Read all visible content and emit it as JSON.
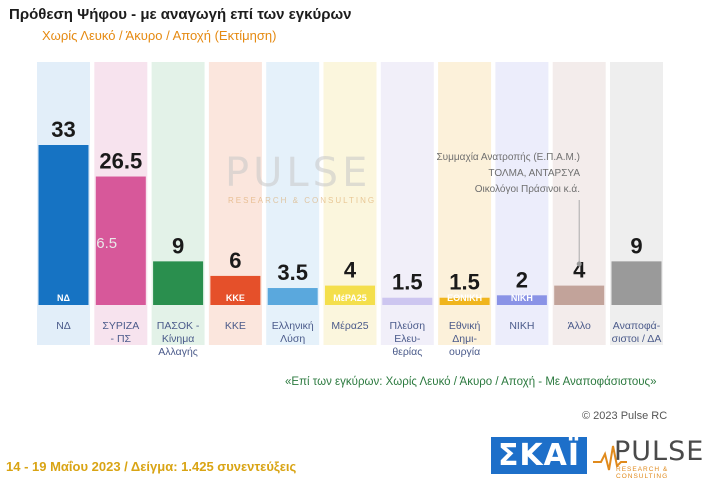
{
  "title": "Πρόθεση Ψήφου - με αναγωγή επί των εγκύρων",
  "subtitle": "Χωρίς Λευκό / Άκυρο / Αποχή  (Εκτίμηση)",
  "note": "«Επί των εγκύρων:  Χωρίς Λευκό / Άκυρο / Αποχή - Με Αναποφάσιστους»",
  "copyright": "© 2023 Pulse RC",
  "footer": "14 - 19 Μαΐου  2023  / Δείγμα:  1.425 συνεντεύξεις",
  "watermark": {
    "word": "PULSE",
    "sub": "RESEARCH & CONSULTING"
  },
  "brand": {
    "skai": "ΣΚΑΪ",
    "pulse": "PULSE",
    "pulse_sub": "RESEARCH & CONSULTING"
  },
  "other_note": [
    "Συμμαχία Ανατροπής (Ε.Π.Α.Μ.)",
    "ΤΟΛΜΑ, ΑΝΤΑΡΣΥΑ",
    "Οικολόγοι Πράσινοι   κ.ά."
  ],
  "colors": {
    "title": "#1c1c1c",
    "subtitle": "#e58a12",
    "note": "#2c7a3f",
    "footer": "#d9a414",
    "skai_blue": "#1d6fc9"
  },
  "chart_data": {
    "type": "bar",
    "title": "Πρόθεση Ψήφου - με αναγωγή επί των εγκύρων",
    "subtitle": "Χωρίς Λευκό / Άκυρο / Αποχή  (Εκτίμηση)",
    "ylim": [
      0,
      36
    ],
    "grid": false,
    "categories": [
      [
        "ΝΔ"
      ],
      [
        "ΣΥΡΙΖΑ",
        "- ΠΣ"
      ],
      [
        "ΠΑΣΟΚ -",
        "Κίνημα",
        "Αλλαγής"
      ],
      [
        "ΚΚΕ"
      ],
      [
        "Ελληνική",
        "Λύση"
      ],
      [
        "Μέρα25"
      ],
      [
        "Πλεύση",
        "Ελευ-",
        "θερίας"
      ],
      [
        "Εθνική",
        "Δημι-",
        "ουργία"
      ],
      [
        "ΝΙΚΗ"
      ],
      [
        "Άλλο"
      ],
      [
        "Αναποφά-",
        "σιστοι / ΔΑ"
      ]
    ],
    "values": [
      33,
      26.5,
      9,
      6,
      3.5,
      4,
      1.5,
      1.5,
      2,
      4,
      9
    ],
    "value_labels": [
      "33",
      "26.5",
      "9",
      "6",
      "3.5",
      "4",
      "1.5",
      "1.5",
      "2",
      "4",
      "9"
    ],
    "bar_colors": [
      "#1673c3",
      "#d7589a",
      "#2a8f4e",
      "#e5502a",
      "#5aa8dd",
      "#f4df4c",
      "#cdc6f0",
      "#f0b51d",
      "#8a93e6",
      "#c2a39a",
      "#9a9a9a"
    ],
    "column_colors": [
      "#e2eef9",
      "#f7e3ee",
      "#e3f2e8",
      "#fbe6dd",
      "#e5f1fa",
      "#fbf6dd",
      "#f1eff9",
      "#fcf1da",
      "#ecedfb",
      "#f3eceb",
      "#eeeeee"
    ],
    "logo_labels": [
      "ΝΔ",
      "",
      "",
      "ΚΚΕ",
      "",
      "ΜέΡΑ25",
      "",
      "ΕΘΝΙΚΗ",
      "ΝΙΚΗ",
      "",
      ""
    ],
    "annotations": [
      "6.5"
    ]
  }
}
